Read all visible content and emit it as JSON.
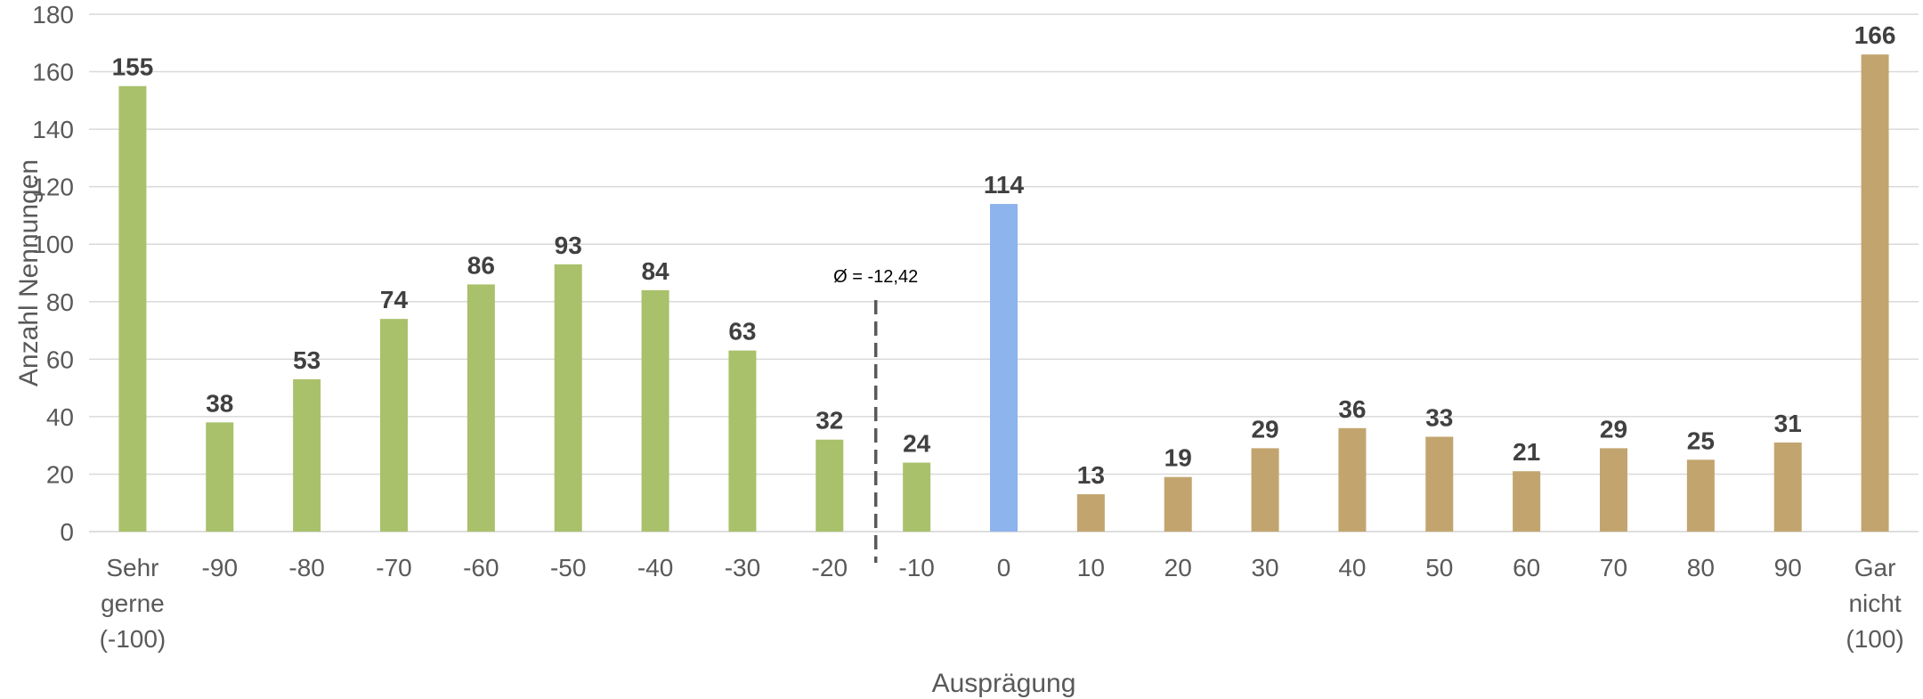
{
  "chart_data": {
    "type": "bar",
    "xlabel": "Ausprägung",
    "ylabel": "Anzahl Nennungen",
    "ylim": [
      0,
      180
    ],
    "yticks": [
      0,
      20,
      40,
      60,
      80,
      100,
      120,
      140,
      160,
      180
    ],
    "grid": true,
    "categories": [
      [
        "Sehr",
        "gerne",
        "(-100)"
      ],
      [
        "-90"
      ],
      [
        "-80"
      ],
      [
        "-70"
      ],
      [
        "-60"
      ],
      [
        "-50"
      ],
      [
        "-40"
      ],
      [
        "-30"
      ],
      [
        "-20"
      ],
      [
        "-10"
      ],
      [
        "0"
      ],
      [
        "10"
      ],
      [
        "20"
      ],
      [
        "30"
      ],
      [
        "40"
      ],
      [
        "50"
      ],
      [
        "60"
      ],
      [
        "70"
      ],
      [
        "80"
      ],
      [
        "90"
      ],
      [
        "Gar",
        "nicht",
        "(100)"
      ]
    ],
    "values": [
      155,
      38,
      53,
      74,
      86,
      93,
      84,
      63,
      32,
      24,
      114,
      13,
      19,
      29,
      36,
      33,
      21,
      29,
      25,
      31,
      166
    ],
    "colors": {
      "negative": "#a9c16b",
      "neutral": "#8db4ec",
      "positive": "#c2a56e",
      "grid": "#d9d9d9",
      "mean_line": "#595959"
    },
    "mean": {
      "value": -12.42,
      "label": "Ø = -12,42"
    }
  }
}
